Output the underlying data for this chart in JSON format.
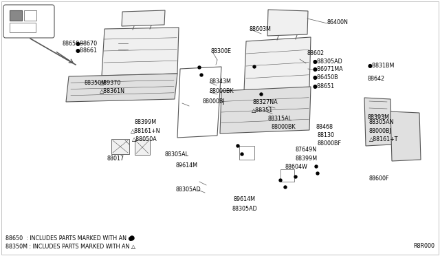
{
  "bg_color": "#ffffff",
  "diagram_code": "R8R000",
  "footnote1": "88650  : INCLUDES PARTS MARKED WITH AN ●",
  "footnote2": "88350M : INCLUDES PARTS MARKED WITH AN △",
  "font_size": 5.8,
  "line_color": "#555555",
  "text_color": "#000000",
  "seat_fill": "#f0f0f0",
  "seat_fill2": "#e0e0e0"
}
